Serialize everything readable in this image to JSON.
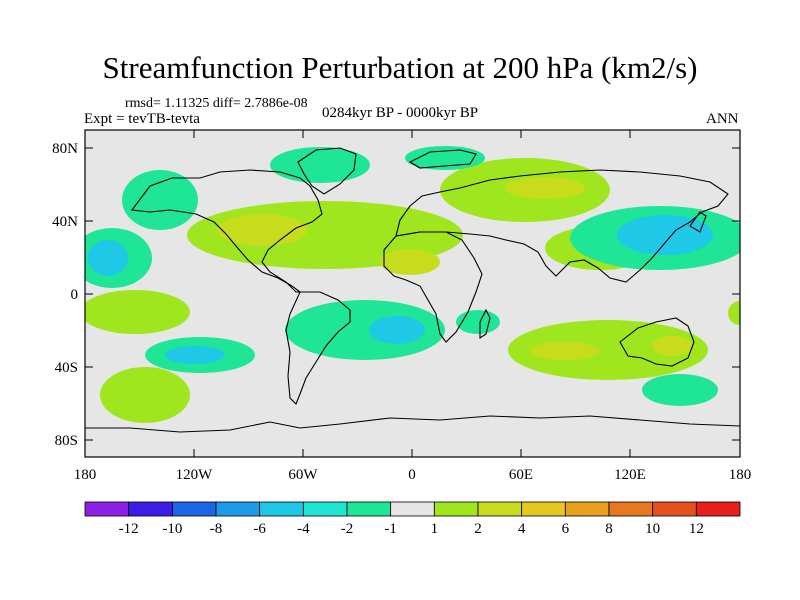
{
  "title": "Streamfunction Perturbation at 200 hPa (km2/s)",
  "stats": "rmsd= 1.11325 diff= 2.7886e-08",
  "experiment": "Expt = tevTB-tevta",
  "period": "0284kyr BP - 0000kyr BP",
  "season": "ANN",
  "lat_ticks": [
    "80N",
    "40N",
    "0",
    "40S",
    "80S"
  ],
  "lon_ticks": [
    "180",
    "120W",
    "60W",
    "0",
    "60E",
    "120E",
    "180"
  ],
  "colorbar": {
    "colors": [
      "#8c1ee6",
      "#3c1ee6",
      "#1e64e6",
      "#1e9be6",
      "#1ec8e6",
      "#1ee6d2",
      "#1ee696",
      "#e6e6e6",
      "#a0e61e",
      "#c8dc1e",
      "#e6c81e",
      "#e6a01e",
      "#e6781e",
      "#e6501e",
      "#e61e1e"
    ],
    "labels": [
      "-12",
      "-10",
      "-8",
      "-6",
      "-4",
      "-2",
      "-1",
      "1",
      "2",
      "4",
      "6",
      "8",
      "10",
      "12"
    ]
  }
}
